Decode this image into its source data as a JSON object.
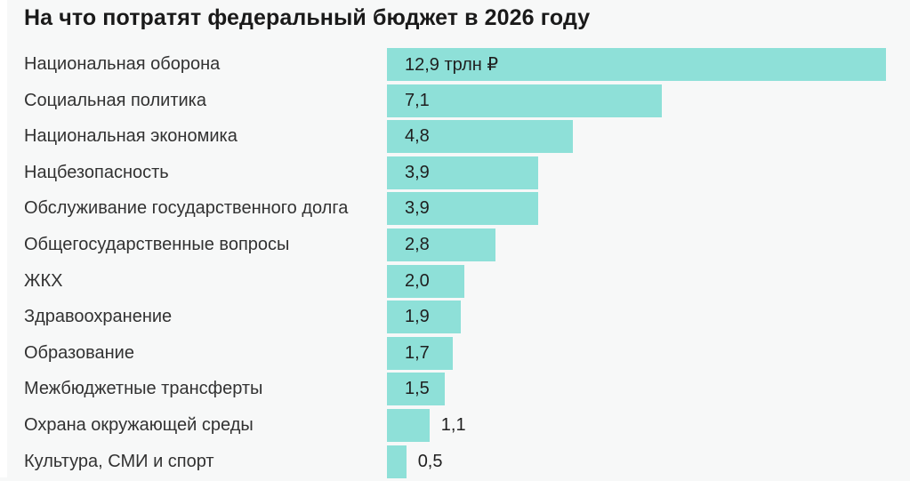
{
  "title": "На что потратят федеральный бюджет в 2026 году",
  "colors": {
    "bar": "#8ee0d8",
    "background": "#f7f8f8",
    "title_text": "#1a1a1a",
    "category_text": "#323232",
    "value_text": "#1f1f1f",
    "left_strip": "#ffffff"
  },
  "chart_data": {
    "type": "bar",
    "orientation": "horizontal",
    "title": "На что потратят федеральный бюджет в 2026 году",
    "unit": "трлн ₽",
    "categories": [
      "Национальная оборона",
      "Социальная политика",
      "Национальная экономика",
      "Нацбезопасность",
      "Обслуживание государственного долга",
      "Общегосударственные вопросы",
      "ЖКХ",
      "Здравоохранение",
      "Образование",
      "Межбюджетные трансферты",
      "Охрана окружающей среды",
      "Культура, СМИ и спорт"
    ],
    "values": [
      12.9,
      7.1,
      4.8,
      3.9,
      3.9,
      2.8,
      2.0,
      1.9,
      1.7,
      1.5,
      1.1,
      0.5
    ],
    "value_labels": [
      "12,9 трлн ₽",
      "7,1",
      "4,8",
      "3,9",
      "3,9",
      "2,8",
      "2,0",
      "1,9",
      "1,7",
      "1,5",
      "1,1",
      "0,5"
    ],
    "xlim": [
      0,
      12.9
    ],
    "grid": false,
    "legend": false,
    "value_labels_inside_bar": true,
    "small_values_labeled_outside": [
      1.1,
      0.5
    ]
  }
}
